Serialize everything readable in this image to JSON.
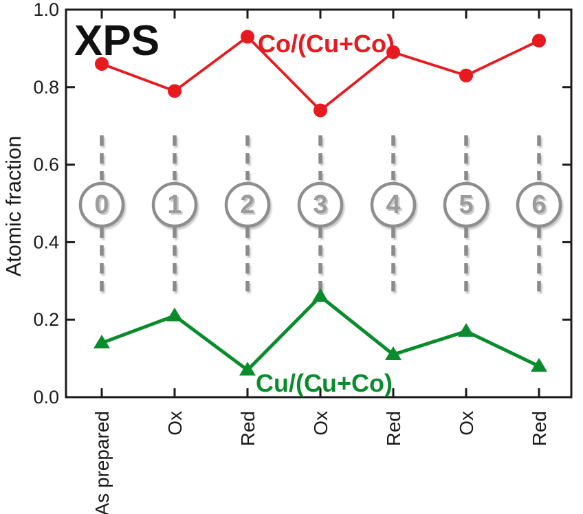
{
  "figure": {
    "background": "#ffffff",
    "annotation": "XPS"
  },
  "chart_data": {
    "type": "line",
    "title": "",
    "annotation": "XPS",
    "categories": [
      "As prepared",
      "Ox",
      "Red",
      "Ox",
      "Red",
      "Ox",
      "Red"
    ],
    "cycle_numbers": [
      "0",
      "1",
      "2",
      "3",
      "4",
      "5",
      "6"
    ],
    "series": [
      {
        "name": "Co/(Cu+Co)",
        "marker": "circle",
        "color": "#e8191f",
        "values": [
          0.86,
          0.79,
          0.93,
          0.74,
          0.89,
          0.83,
          0.92
        ]
      },
      {
        "name": "Cu/(Cu+Co)",
        "marker": "triangle",
        "color": "#0a8c2d",
        "values": [
          0.14,
          0.21,
          0.07,
          0.26,
          0.11,
          0.17,
          0.08
        ]
      }
    ],
    "xlabel": "",
    "ylabel": "Atomic fraction",
    "ylim": [
      0.0,
      1.0
    ],
    "yticks": [
      0.0,
      0.2,
      0.4,
      0.6,
      0.8,
      1.0
    ],
    "ytick_labels": [
      "0.0",
      "0.2",
      "0.4",
      "0.6",
      "0.8",
      "1.0"
    ],
    "grid": false,
    "legend_position": "inline-labels",
    "styles": {
      "axis_color": "#1a1a1a",
      "dash_color": "#8a8a8a",
      "circle_stroke": "#8e8e8e",
      "number_color": "#9b9b9b",
      "number_shadow": "#cccccc",
      "label_color": "#1a1a1a"
    }
  }
}
